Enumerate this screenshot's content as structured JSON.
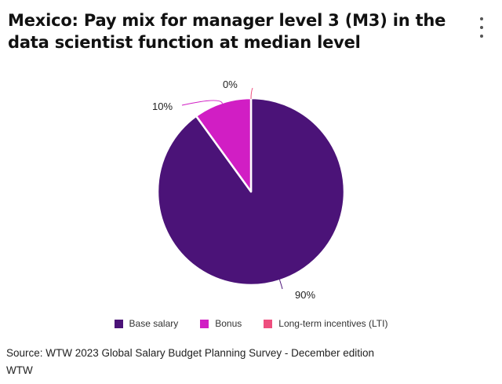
{
  "title": "Mexico: Pay mix for manager level 3 (M3) in the data scientist function at median level",
  "menu_icon": "more-vertical-icon",
  "chart_data": {
    "type": "pie",
    "title": "Mexico: Pay mix for manager level 3 (M3) in the data scientist function at median level",
    "categories": [
      "Base salary",
      "Bonus",
      "Long-term incentives (LTI)"
    ],
    "values": [
      90,
      10,
      0
    ],
    "data_labels": [
      "90%",
      "10%",
      "0%"
    ],
    "colors": [
      "#4b1378",
      "#d11ec4",
      "#ee4e7e"
    ],
    "legend_position": "bottom"
  },
  "legend": {
    "items": [
      {
        "label": "Base salary",
        "color": "#4b1378"
      },
      {
        "label": "Bonus",
        "color": "#d11ec4"
      },
      {
        "label": "Long-term incentives (LTI)",
        "color": "#ee4e7e"
      }
    ]
  },
  "footer": {
    "source": "Source: WTW 2023 Global Salary Budget Planning Survey - December edition",
    "credit": "WTW"
  }
}
